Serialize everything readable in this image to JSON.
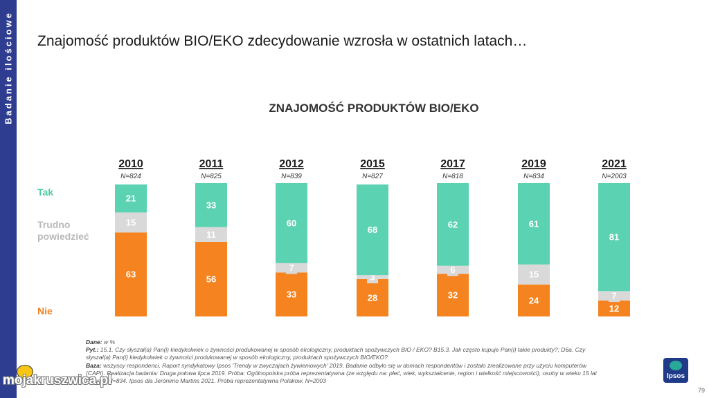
{
  "sidebar": {
    "label": "Badanie ilościowe"
  },
  "page": {
    "title": "Znajomość produktów BIO/EKO zdecydowanie wzrosła w ostatnich latach…",
    "page_number": "79",
    "watermark": "mojakruszwica.pl",
    "logo_text": "Ipsos"
  },
  "legend": {
    "tak": "Tak",
    "trudno_line1": "Trudno",
    "trudno_line2": "powiedzieć",
    "nie": "Nie"
  },
  "colors": {
    "tak": "#5bd2b1",
    "trudno": "#d9d9d9",
    "nie": "#f5831f",
    "sidebar": "#2e3d8f"
  },
  "chart_data": {
    "type": "bar",
    "stacked": true,
    "orientation": "vertical",
    "title": "ZNAJOMOŚĆ PRODUKTÓW BIO/EKO",
    "categories": [
      "2010",
      "2011",
      "2012",
      "2015",
      "2017",
      "2019",
      "2021"
    ],
    "sample_sizes": [
      "N=824",
      "N=825",
      "N=839",
      "N=827",
      "N=818",
      "N=834",
      "N=2003"
    ],
    "series": [
      {
        "name": "Nie",
        "values": [
          63,
          56,
          33,
          28,
          32,
          24,
          12
        ]
      },
      {
        "name": "Trudno powiedzieć",
        "values": [
          15,
          11,
          7,
          3,
          6,
          15,
          7
        ]
      },
      {
        "name": "Tak",
        "values": [
          21,
          33,
          60,
          68,
          62,
          61,
          81
        ]
      }
    ],
    "unit": "%",
    "legend_position": "left"
  },
  "footnotes": {
    "dane_label": "Dane:",
    "dane": "w %",
    "pyt_label": "Pyt.:",
    "pyt_line1": "15.1. Czy słyszał(a) Pan(i) kiedykolwiek o żywności produkowanej w sposób ekologiczny, produktach spożywczych BIO /  EKO? B15.3. Jak często kupuje Pan(i) takie produkty?; D6a. Czy",
    "pyt_line2": "słyszał(a) Pan(i) kiedykolwiek o żywności produkowanej w sposób ekologiczny, produktach spożywczych BIO/EKO?",
    "baza_label": "Baza:",
    "baza_line1": "wszyscy respondenci, Raport syndykatowy Ipsos 'Trendy w zwyczajach żywieniowych' 2019, Badanie odbyło się w domach respondentów i zostało zrealizowane przy użyciu komputerów",
    "baza_line2": "(CAPI). Realizacja badania: Druga połowa lipca 2019. Próba: Ogólnopolska próba reprezentatywna (ze względu na: płeć, wiek, wykształcenie, region i wielkość miejscowości), osoby w wieku 15 lat",
    "baza_line3": "i więcej, N=834. Ipsos dla Jerónimo Martins 2021. Próba reprezentatywna Polakow, N=2003"
  }
}
